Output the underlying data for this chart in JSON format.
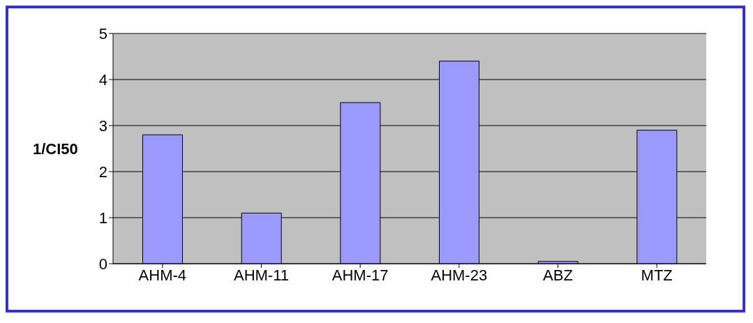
{
  "chart_data": {
    "type": "bar",
    "ylabel": "1/CI50",
    "categories": [
      "AHM-4",
      "AHM-11",
      "AHM-17",
      "AHM-23",
      "ABZ",
      "MTZ"
    ],
    "values": [
      2.8,
      1.1,
      3.5,
      4.4,
      0.05,
      2.9
    ],
    "color": "#9999ff",
    "ylim": [
      0,
      5
    ],
    "yticks": [
      0,
      1,
      2,
      3,
      4,
      5
    ],
    "grid": "y"
  }
}
